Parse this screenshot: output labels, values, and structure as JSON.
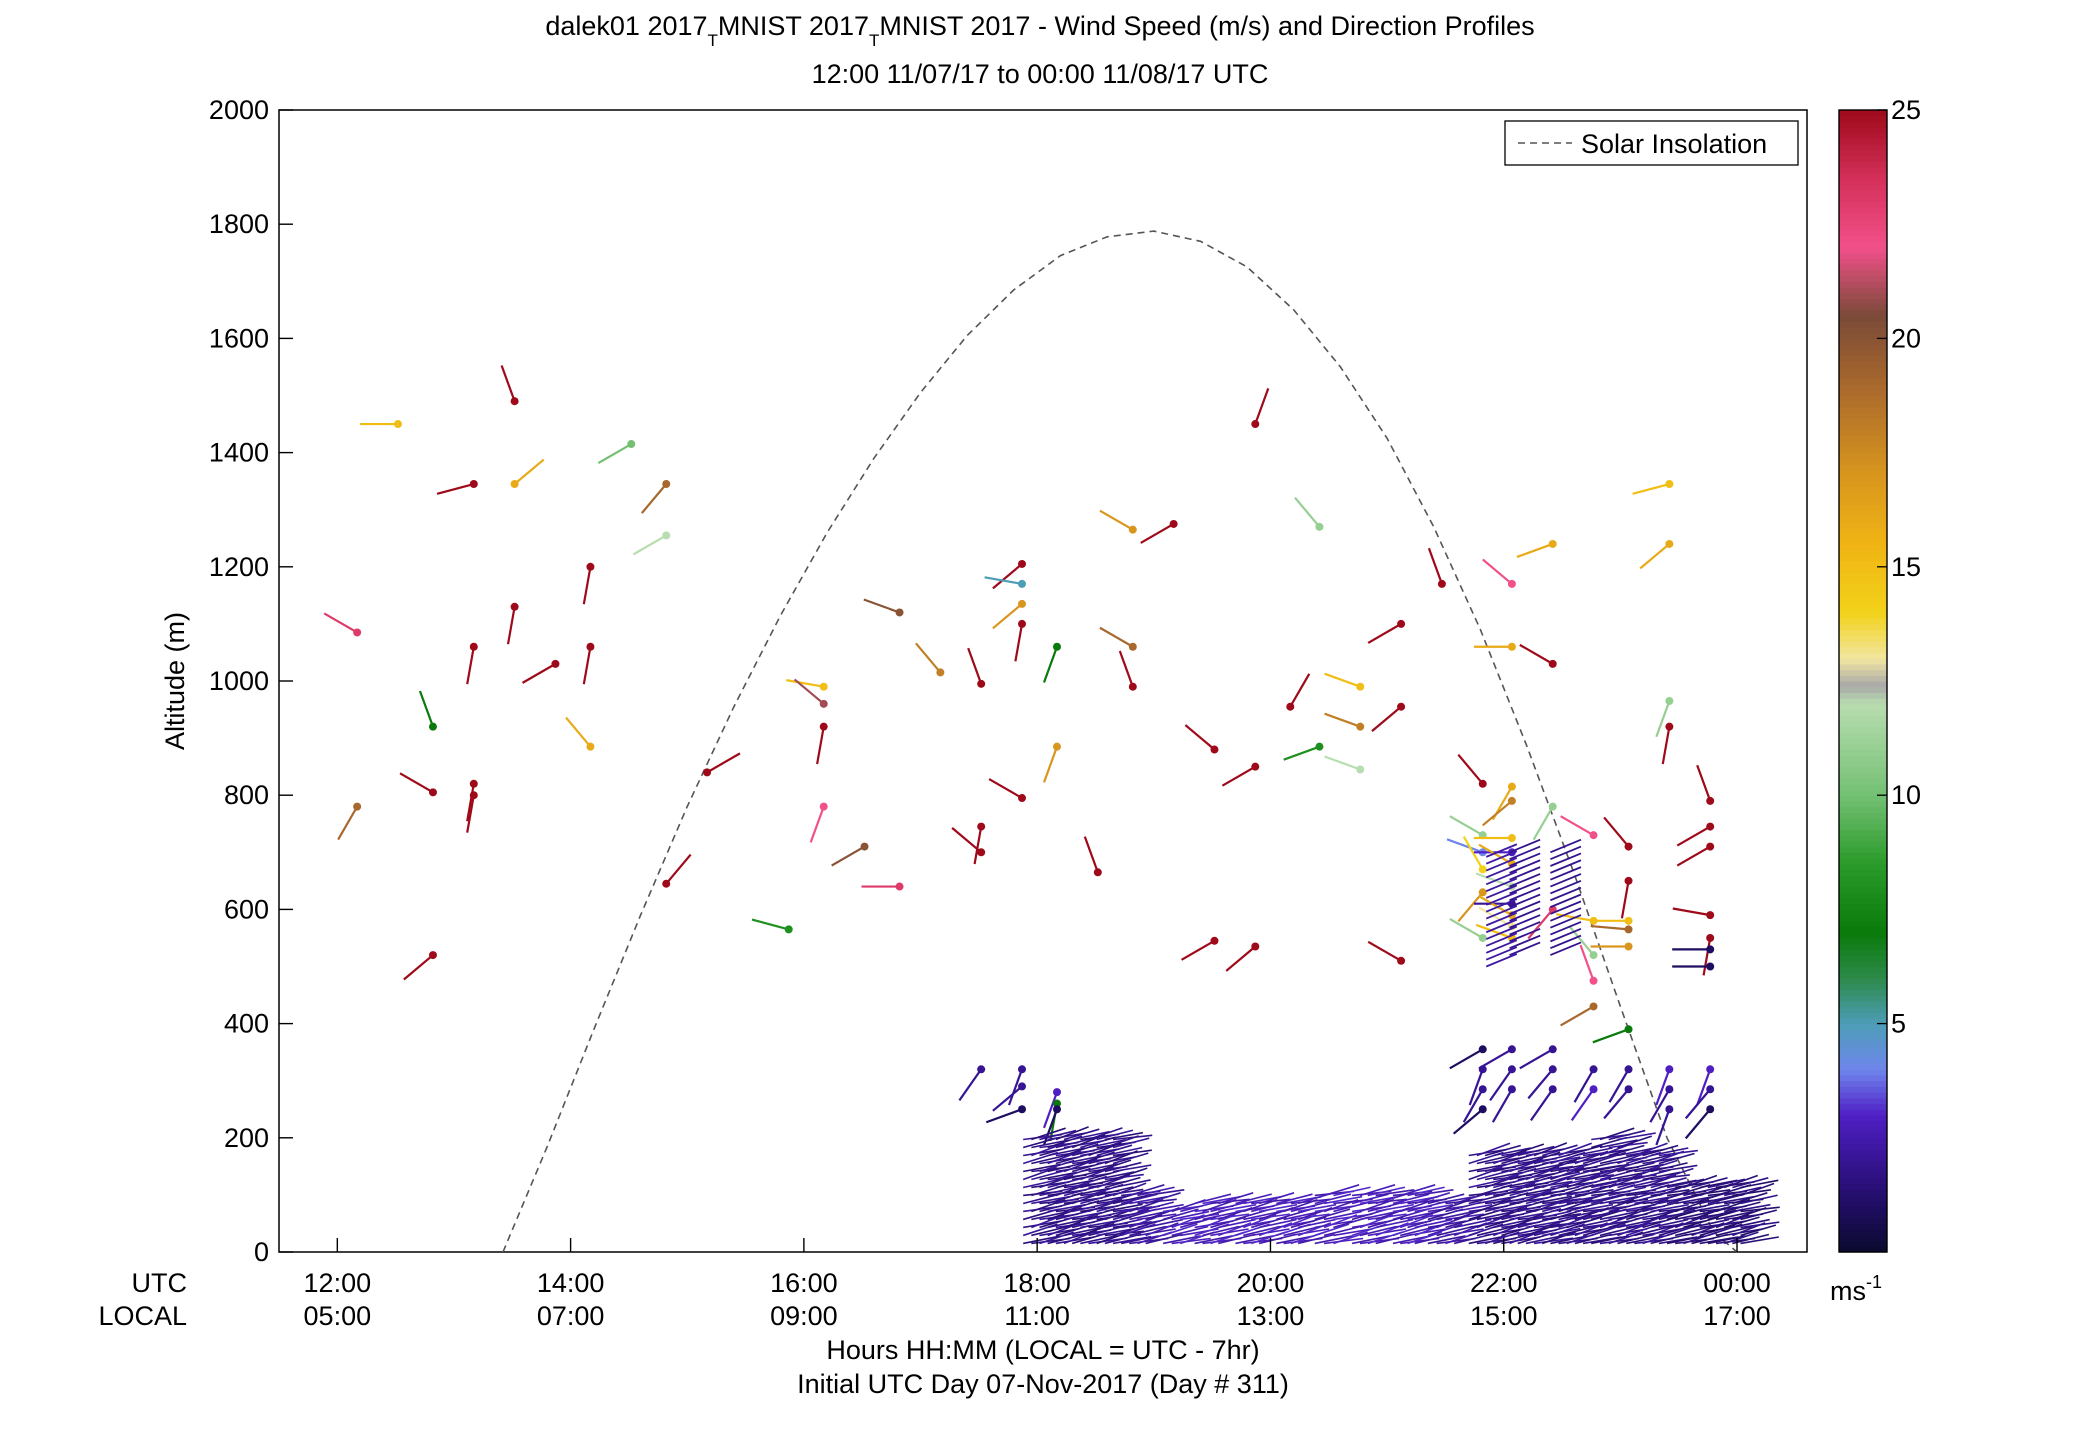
{
  "chart_data": {
    "type": "scatter",
    "subtype": "wind-barb profile",
    "title_line1_parts": [
      "dalek01 2017",
      "MNIST 2017",
      "MNIST 2017 - Wind Speed (m/s) and Direction Profiles"
    ],
    "title_subscript": "T",
    "title_line2": "12:00 11/07/17 to 00:00 11/08/17  UTC",
    "ylabel": "Altitude (m)",
    "xlabel_line1": "Hours HH:MM  (LOCAL = UTC - 7hr)",
    "xlabel_line2": "Initial UTC Day 07-Nov-2017 (Day # 311)",
    "row_label_utc": "UTC",
    "row_label_local": "LOCAL",
    "xlim": [
      11.5,
      24.6
    ],
    "ylim": [
      0,
      2000
    ],
    "x_ticks": [
      12,
      14,
      16,
      18,
      20,
      22,
      24
    ],
    "x_tick_labels_utc": [
      "12:00",
      "14:00",
      "16:00",
      "18:00",
      "20:00",
      "22:00",
      "00:00"
    ],
    "x_tick_labels_local": [
      "05:00",
      "07:00",
      "09:00",
      "11:00",
      "13:00",
      "15:00",
      "17:00"
    ],
    "y_ticks": [
      0,
      200,
      400,
      600,
      800,
      1000,
      1200,
      1400,
      1600,
      1800,
      2000
    ],
    "y_tick_labels": [
      "0",
      "200",
      "400",
      "600",
      "800",
      "1000",
      "1200",
      "1400",
      "1600",
      "1800",
      "2000"
    ],
    "legend": {
      "label": "Solar Insolation",
      "placement": "top-right"
    },
    "colorbar": {
      "range": [
        0,
        25
      ],
      "ticks": [
        5,
        10,
        15,
        20,
        25
      ],
      "tick_labels": [
        "5",
        "10",
        "15",
        "20",
        "25"
      ],
      "unit_base": "ms",
      "unit_exp": "-1",
      "stops": [
        {
          "v": 0,
          "c": "#0a0a2e"
        },
        {
          "v": 1.5,
          "c": "#2a0f7a"
        },
        {
          "v": 3,
          "c": "#4f1fc4"
        },
        {
          "v": 4,
          "c": "#6f86ec"
        },
        {
          "v": 5,
          "c": "#4d9db8"
        },
        {
          "v": 6,
          "c": "#2d8a4a"
        },
        {
          "v": 7,
          "c": "#0a7a0a"
        },
        {
          "v": 8.5,
          "c": "#2a9a2a"
        },
        {
          "v": 10,
          "c": "#73c073"
        },
        {
          "v": 12,
          "c": "#b8ddb0"
        },
        {
          "v": 12.4,
          "c": "#a8a8a8"
        },
        {
          "v": 13,
          "c": "#f2e6a0"
        },
        {
          "v": 14,
          "c": "#f2d21a"
        },
        {
          "v": 15.5,
          "c": "#f0b414"
        },
        {
          "v": 17,
          "c": "#d9961e"
        },
        {
          "v": 19,
          "c": "#a8682d"
        },
        {
          "v": 20.5,
          "c": "#7a4a38"
        },
        {
          "v": 22,
          "c": "#f2508a"
        },
        {
          "v": 23.5,
          "c": "#d4305a"
        },
        {
          "v": 25,
          "c": "#9e0a1a"
        }
      ]
    },
    "solar_insolation": {
      "x": [
        13.42,
        13.8,
        14.2,
        14.6,
        15.0,
        15.4,
        15.8,
        16.2,
        16.6,
        17.0,
        17.4,
        17.8,
        18.2,
        18.6,
        19.0,
        19.4,
        19.8,
        20.2,
        20.6,
        21.0,
        21.4,
        21.8,
        22.2,
        22.6,
        23.0,
        23.4,
        23.8,
        24.0
      ],
      "y": [
        0,
        185,
        390,
        590,
        780,
        955,
        1115,
        1260,
        1390,
        1505,
        1605,
        1685,
        1745,
        1778,
        1788,
        1770,
        1725,
        1650,
        1550,
        1425,
        1270,
        1090,
        885,
        665,
        430,
        200,
        35,
        0
      ]
    },
    "barbs": [
      {
        "t": 12.17,
        "z": 1085,
        "s": 23,
        "d": 300
      },
      {
        "t": 12.17,
        "z": 780,
        "s": 19,
        "d": 210
      },
      {
        "t": 12.52,
        "z": 1450,
        "s": 15,
        "d": 270
      },
      {
        "t": 12.82,
        "z": 920,
        "s": 7,
        "d": 340
      },
      {
        "t": 12.82,
        "z": 805,
        "s": 25,
        "d": 300
      },
      {
        "t": 12.82,
        "z": 520,
        "s": 25,
        "d": 230
      },
      {
        "t": 13.17,
        "z": 1345,
        "s": 25,
        "d": 255
      },
      {
        "t": 13.17,
        "z": 1060,
        "s": 25,
        "d": 190
      },
      {
        "t": 13.17,
        "z": 820,
        "s": 25,
        "d": 190
      },
      {
        "t": 13.17,
        "z": 800,
        "s": 25,
        "d": 190
      },
      {
        "t": 13.52,
        "z": 1490,
        "s": 25,
        "d": 340
      },
      {
        "t": 13.52,
        "z": 1345,
        "s": 16,
        "d": 50
      },
      {
        "t": 13.52,
        "z": 1130,
        "s": 25,
        "d": 190
      },
      {
        "t": 13.87,
        "z": 1030,
        "s": 25,
        "d": 240
      },
      {
        "t": 14.17,
        "z": 1200,
        "s": 25,
        "d": 190
      },
      {
        "t": 14.17,
        "z": 1060,
        "s": 25,
        "d": 190
      },
      {
        "t": 14.17,
        "z": 885,
        "s": 16,
        "d": 320
      },
      {
        "t": 14.52,
        "z": 1415,
        "s": 10,
        "d": 240
      },
      {
        "t": 14.82,
        "z": 1345,
        "s": 19,
        "d": 220
      },
      {
        "t": 14.82,
        "z": 1255,
        "s": 12,
        "d": 240
      },
      {
        "t": 14.82,
        "z": 645,
        "s": 25,
        "d": 40
      },
      {
        "t": 15.17,
        "z": 840,
        "s": 25,
        "d": 60
      },
      {
        "t": 15.87,
        "z": 565,
        "s": 8,
        "d": 285
      },
      {
        "t": 16.17,
        "z": 990,
        "s": 15,
        "d": 280
      },
      {
        "t": 16.17,
        "z": 960,
        "s": 21,
        "d": 310
      },
      {
        "t": 16.17,
        "z": 920,
        "s": 25,
        "d": 190
      },
      {
        "t": 16.17,
        "z": 780,
        "s": 22,
        "d": 200
      },
      {
        "t": 16.52,
        "z": 710,
        "s": 20,
        "d": 240
      },
      {
        "t": 16.82,
        "z": 1120,
        "s": 20,
        "d": 290
      },
      {
        "t": 16.82,
        "z": 640,
        "s": 23,
        "d": 270
      },
      {
        "t": 17.17,
        "z": 1015,
        "s": 18,
        "d": 320
      },
      {
        "t": 17.52,
        "z": 995,
        "s": 25,
        "d": 340
      },
      {
        "t": 17.52,
        "z": 745,
        "s": 25,
        "d": 190
      },
      {
        "t": 17.52,
        "z": 700,
        "s": 25,
        "d": 310
      },
      {
        "t": 17.87,
        "z": 1205,
        "s": 25,
        "d": 230
      },
      {
        "t": 17.87,
        "z": 1170,
        "s": 5,
        "d": 280
      },
      {
        "t": 17.87,
        "z": 1135,
        "s": 17,
        "d": 230
      },
      {
        "t": 17.87,
        "z": 1100,
        "s": 25,
        "d": 190
      },
      {
        "t": 17.87,
        "z": 795,
        "s": 25,
        "d": 300
      },
      {
        "t": 18.17,
        "z": 1060,
        "s": 7,
        "d": 200
      },
      {
        "t": 18.17,
        "z": 885,
        "s": 17,
        "d": 200
      },
      {
        "t": 18.52,
        "z": 665,
        "s": 25,
        "d": 340
      },
      {
        "t": 18.82,
        "z": 1265,
        "s": 17,
        "d": 300
      },
      {
        "t": 18.82,
        "z": 1060,
        "s": 19,
        "d": 300
      },
      {
        "t": 18.82,
        "z": 990,
        "s": 25,
        "d": 340
      },
      {
        "t": 19.17,
        "z": 1275,
        "s": 25,
        "d": 240
      },
      {
        "t": 19.52,
        "z": 880,
        "s": 25,
        "d": 310
      },
      {
        "t": 19.52,
        "z": 545,
        "s": 25,
        "d": 240
      },
      {
        "t": 19.87,
        "z": 1450,
        "s": 25,
        "d": 20
      },
      {
        "t": 19.87,
        "z": 850,
        "s": 25,
        "d": 240
      },
      {
        "t": 19.87,
        "z": 535,
        "s": 25,
        "d": 230
      },
      {
        "t": 20.17,
        "z": 955,
        "s": 25,
        "d": 30
      },
      {
        "t": 20.42,
        "z": 1270,
        "s": 11,
        "d": 320
      },
      {
        "t": 20.42,
        "z": 885,
        "s": 8,
        "d": 250
      },
      {
        "t": 20.77,
        "z": 990,
        "s": 15,
        "d": 290
      },
      {
        "t": 20.77,
        "z": 920,
        "s": 18,
        "d": 290
      },
      {
        "t": 20.77,
        "z": 845,
        "s": 12,
        "d": 290
      },
      {
        "t": 21.12,
        "z": 1100,
        "s": 25,
        "d": 240
      },
      {
        "t": 21.12,
        "z": 955,
        "s": 25,
        "d": 230
      },
      {
        "t": 21.12,
        "z": 510,
        "s": 25,
        "d": 300
      },
      {
        "t": 21.47,
        "z": 1170,
        "s": 25,
        "d": 340
      },
      {
        "t": 21.82,
        "z": 820,
        "s": 25,
        "d": 320
      },
      {
        "t": 21.82,
        "z": 630,
        "s": 17,
        "d": 220
      },
      {
        "t": 22.07,
        "z": 1170,
        "s": 22,
        "d": 310
      },
      {
        "t": 22.07,
        "z": 1060,
        "s": 16,
        "d": 270
      },
      {
        "t": 22.07,
        "z": 815,
        "s": 16,
        "d": 210
      },
      {
        "t": 22.07,
        "z": 790,
        "s": 18,
        "d": 230
      },
      {
        "t": 22.42,
        "z": 1240,
        "s": 16,
        "d": 250
      },
      {
        "t": 22.42,
        "z": 1030,
        "s": 25,
        "d": 300
      },
      {
        "t": 22.42,
        "z": 780,
        "s": 11,
        "d": 210
      },
      {
        "t": 22.42,
        "z": 600,
        "s": 23,
        "d": 220
      },
      {
        "t": 22.77,
        "z": 730,
        "s": 22,
        "d": 300
      },
      {
        "t": 22.77,
        "z": 580,
        "s": 15,
        "d": 280
      },
      {
        "t": 22.77,
        "z": 520,
        "s": 11,
        "d": 320
      },
      {
        "t": 22.77,
        "z": 475,
        "s": 22,
        "d": 340
      },
      {
        "t": 22.77,
        "z": 430,
        "s": 19,
        "d": 240
      },
      {
        "t": 23.07,
        "z": 710,
        "s": 25,
        "d": 320
      },
      {
        "t": 23.07,
        "z": 650,
        "s": 25,
        "d": 190
      },
      {
        "t": 23.07,
        "z": 580,
        "s": 15,
        "d": 270
      },
      {
        "t": 23.07,
        "z": 565,
        "s": 19,
        "d": 275
      },
      {
        "t": 23.07,
        "z": 535,
        "s": 17,
        "d": 270
      },
      {
        "t": 23.07,
        "z": 390,
        "s": 7,
        "d": 250
      },
      {
        "t": 23.42,
        "z": 1345,
        "s": 15,
        "d": 255
      },
      {
        "t": 23.42,
        "z": 1240,
        "s": 16,
        "d": 230
      },
      {
        "t": 23.42,
        "z": 965,
        "s": 11,
        "d": 200
      },
      {
        "t": 23.42,
        "z": 920,
        "s": 25,
        "d": 190
      },
      {
        "t": 23.77,
        "z": 790,
        "s": 25,
        "d": 340
      },
      {
        "t": 23.77,
        "z": 745,
        "s": 25,
        "d": 240
      },
      {
        "t": 23.77,
        "z": 710,
        "s": 25,
        "d": 240
      },
      {
        "t": 23.77,
        "z": 590,
        "s": 25,
        "d": 280
      },
      {
        "t": 23.77,
        "z": 550,
        "s": 25,
        "d": 190
      },
      {
        "t": 23.77,
        "z": 530,
        "s": 1,
        "d": 270
      },
      {
        "t": 23.77,
        "z": 500,
        "s": 1,
        "d": 270
      },
      {
        "t": 21.82,
        "z": 730,
        "s": 11,
        "d": 300
      },
      {
        "t": 21.82,
        "z": 700,
        "s": 4,
        "d": 290
      },
      {
        "t": 21.82,
        "z": 670,
        "s": 14,
        "d": 330
      },
      {
        "t": 21.82,
        "z": 550,
        "s": 11,
        "d": 300
      },
      {
        "t": 22.07,
        "z": 725,
        "s": 15,
        "d": 270
      },
      {
        "t": 22.07,
        "z": 700,
        "s": 3,
        "d": 270
      },
      {
        "t": 22.07,
        "z": 680,
        "s": 16,
        "d": 300
      },
      {
        "t": 22.07,
        "z": 640,
        "s": 12,
        "d": 290
      },
      {
        "t": 22.07,
        "z": 610,
        "s": 2,
        "d": 270
      },
      {
        "t": 22.07,
        "z": 590,
        "s": 16,
        "d": 300
      },
      {
        "t": 22.07,
        "z": 570,
        "s": 13,
        "d": 300
      },
      {
        "t": 22.07,
        "z": 550,
        "s": 15,
        "d": 290
      },
      {
        "t": 17.52,
        "z": 320,
        "s": 2,
        "d": 215
      },
      {
        "t": 17.87,
        "z": 320,
        "s": 2,
        "d": 200
      },
      {
        "t": 17.87,
        "z": 290,
        "s": 2,
        "d": 230
      },
      {
        "t": 17.87,
        "z": 250,
        "s": 1,
        "d": 250
      },
      {
        "t": 18.17,
        "z": 280,
        "s": 3,
        "d": 200
      },
      {
        "t": 18.17,
        "z": 260,
        "s": 7,
        "d": 190
      },
      {
        "t": 18.17,
        "z": 250,
        "s": 1,
        "d": 200
      },
      {
        "t": 21.82,
        "z": 355,
        "s": 1,
        "d": 240
      },
      {
        "t": 21.82,
        "z": 320,
        "s": 2,
        "d": 200
      },
      {
        "t": 21.82,
        "z": 285,
        "s": 2,
        "d": 210
      },
      {
        "t": 21.82,
        "z": 250,
        "s": 1,
        "d": 230
      },
      {
        "t": 22.07,
        "z": 355,
        "s": 2,
        "d": 240
      },
      {
        "t": 22.07,
        "z": 320,
        "s": 2,
        "d": 215
      },
      {
        "t": 22.07,
        "z": 285,
        "s": 2,
        "d": 210
      },
      {
        "t": 22.42,
        "z": 355,
        "s": 2,
        "d": 240
      },
      {
        "t": 22.42,
        "z": 320,
        "s": 2,
        "d": 220
      },
      {
        "t": 22.42,
        "z": 285,
        "s": 2,
        "d": 215
      },
      {
        "t": 22.77,
        "z": 320,
        "s": 2,
        "d": 210
      },
      {
        "t": 22.77,
        "z": 285,
        "s": 3,
        "d": 215
      },
      {
        "t": 23.07,
        "z": 320,
        "s": 2,
        "d": 210
      },
      {
        "t": 23.07,
        "z": 285,
        "s": 2,
        "d": 220
      },
      {
        "t": 23.42,
        "z": 320,
        "s": 3,
        "d": 200
      },
      {
        "t": 23.42,
        "z": 285,
        "s": 2,
        "d": 210
      },
      {
        "t": 23.42,
        "z": 250,
        "s": 2,
        "d": 200
      },
      {
        "t": 23.77,
        "z": 320,
        "s": 3,
        "d": 200
      },
      {
        "t": 23.77,
        "z": 285,
        "s": 2,
        "d": 220
      },
      {
        "t": 23.77,
        "z": 250,
        "s": 1,
        "d": 220
      }
    ],
    "dense_profiles": [
      {
        "t0": 17.88,
        "t1": 18.72,
        "zmax": 200,
        "spd": 1.5
      },
      {
        "t0": 18.72,
        "t1": 19.0,
        "zmax": 100,
        "spd": 2
      },
      {
        "t0": 19.08,
        "t1": 19.3,
        "zmax": 80,
        "spd": 2.5
      },
      {
        "t0": 19.35,
        "t1": 19.62,
        "zmax": 85,
        "spd": 2.5
      },
      {
        "t0": 19.7,
        "t1": 19.97,
        "zmax": 90,
        "spd": 2.5
      },
      {
        "t0": 20.05,
        "t1": 20.3,
        "zmax": 90,
        "spd": 2.5
      },
      {
        "t0": 20.38,
        "t1": 20.62,
        "zmax": 100,
        "spd": 2.5
      },
      {
        "t0": 20.7,
        "t1": 20.97,
        "zmax": 100,
        "spd": 2.5
      },
      {
        "t0": 21.05,
        "t1": 21.3,
        "zmax": 100,
        "spd": 2.5
      },
      {
        "t0": 21.35,
        "t1": 21.65,
        "zmax": 90,
        "spd": 2
      },
      {
        "t0": 21.7,
        "t1": 22.4,
        "zmax": 170,
        "spd": 1.5
      },
      {
        "t0": 22.4,
        "t1": 22.75,
        "zmax": 180,
        "spd": 1.5
      },
      {
        "t0": 22.75,
        "t1": 23.05,
        "zmax": 200,
        "spd": 1.5
      },
      {
        "t0": 23.05,
        "t1": 23.4,
        "zmax": 180,
        "spd": 1.5
      },
      {
        "t0": 23.4,
        "t1": 23.75,
        "zmax": 120,
        "spd": 1.2
      },
      {
        "t0": 23.75,
        "t1": 24.1,
        "zmax": 120,
        "spd": 1.2
      }
    ],
    "dense_upper_columns": [
      {
        "t": 22.05,
        "z0": 520,
        "z1": 700,
        "spd": 1.5
      },
      {
        "t": 22.4,
        "z0": 520,
        "z1": 700,
        "spd": 1.5
      },
      {
        "t": 21.85,
        "z0": 500,
        "z1": 700,
        "spd": 1.5
      }
    ]
  }
}
